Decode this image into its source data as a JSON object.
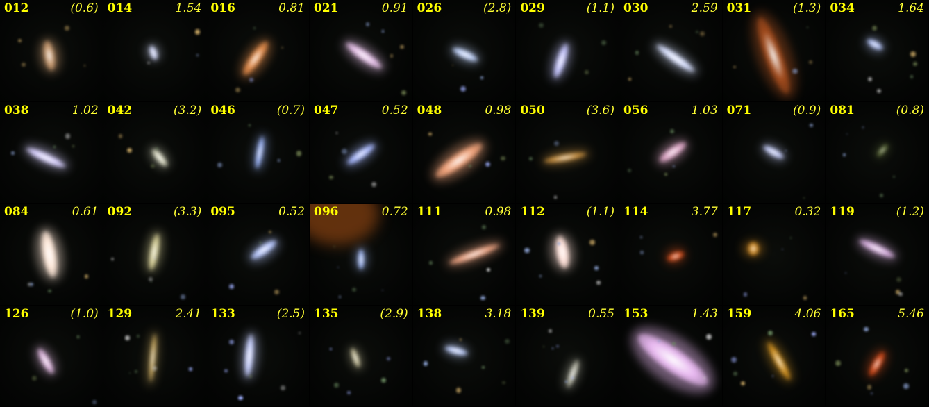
{
  "galaxies": [
    {
      "id": "012",
      "z": "(0.6)",
      "color": "#c89a70",
      "rot": 80,
      "len": 44,
      "wid": 16,
      "x": 48,
      "y": 55
    },
    {
      "id": "014",
      "z": "1.54",
      "color": "#d6dcff",
      "rot": 70,
      "len": 22,
      "wid": 10,
      "x": 49,
      "y": 52
    },
    {
      "id": "016",
      "z": "0.81",
      "color": "#e08a4a",
      "rot": 125,
      "len": 58,
      "wid": 16,
      "x": 48,
      "y": 58
    },
    {
      "id": "021",
      "z": "0.91",
      "color": "#e6c0e8",
      "rot": 35,
      "len": 62,
      "wid": 14,
      "x": 53,
      "y": 55
    },
    {
      "id": "026",
      "z": "(2.8)",
      "color": "#c4d6ff",
      "rot": 25,
      "len": 40,
      "wid": 11,
      "x": 51,
      "y": 54
    },
    {
      "id": "029",
      "z": "(1.1)",
      "color": "#c6c6ff",
      "rot": 108,
      "len": 52,
      "wid": 13,
      "x": 44,
      "y": 60
    },
    {
      "id": "030",
      "z": "2.59",
      "color": "#d8e0ff",
      "rot": 35,
      "len": 66,
      "wid": 12,
      "x": 55,
      "y": 58
    },
    {
      "id": "031",
      "z": "(1.3)",
      "color": "#a04a1c",
      "rot": 70,
      "len": 116,
      "wid": 26,
      "x": 50,
      "y": 55
    },
    {
      "id": "034",
      "z": "1.64",
      "color": "#b8c8ff",
      "rot": 30,
      "len": 26,
      "wid": 10,
      "x": 48,
      "y": 44
    },
    {
      "id": "038",
      "z": "1.02",
      "color": "#d8d0ff",
      "rot": 25,
      "len": 62,
      "wid": 12,
      "x": 45,
      "y": 55
    },
    {
      "id": "042",
      "z": "(3.2)",
      "color": "#e0e0c8",
      "rot": 50,
      "len": 32,
      "wid": 10,
      "x": 55,
      "y": 55
    },
    {
      "id": "046",
      "z": "(0.7)",
      "color": "#9fb8ff",
      "rot": 100,
      "len": 48,
      "wid": 9,
      "x": 52,
      "y": 50
    },
    {
      "id": "047",
      "z": "0.52",
      "color": "#a8b8ff",
      "rot": 145,
      "len": 48,
      "wid": 12,
      "x": 50,
      "y": 52
    },
    {
      "id": "048",
      "z": "0.98",
      "color": "#f0a27a",
      "rot": 145,
      "len": 80,
      "wid": 20,
      "x": 45,
      "y": 58
    },
    {
      "id": "050",
      "z": "(3.6)",
      "color": "#c89040",
      "rot": 170,
      "len": 62,
      "wid": 10,
      "x": 48,
      "y": 55
    },
    {
      "id": "056",
      "z": "1.03",
      "color": "#e0a8c8",
      "rot": 145,
      "len": 46,
      "wid": 14,
      "x": 52,
      "y": 50
    },
    {
      "id": "071",
      "z": "(0.9)",
      "color": "#c8d0ff",
      "rot": 30,
      "len": 34,
      "wid": 10,
      "x": 50,
      "y": 50
    },
    {
      "id": "081",
      "z": "(0.8)",
      "color": "#6a7a40",
      "rot": 130,
      "len": 22,
      "wid": 7,
      "x": 55,
      "y": 48
    },
    {
      "id": "084",
      "z": "0.61",
      "color": "#ffe8d8",
      "rot": 80,
      "len": 68,
      "wid": 20,
      "x": 48,
      "y": 50
    },
    {
      "id": "092",
      "z": "(3.3)",
      "color": "#d8d098",
      "rot": 100,
      "len": 54,
      "wid": 12,
      "x": 50,
      "y": 48
    },
    {
      "id": "095",
      "z": "0.52",
      "color": "#b8c8ff",
      "rot": 145,
      "len": 44,
      "wid": 13,
      "x": 56,
      "y": 46
    },
    {
      "id": "096",
      "z": "0.72",
      "color": "#a8c0ff",
      "rot": 90,
      "len": 30,
      "wid": 9,
      "x": 50,
      "y": 55
    },
    {
      "id": "111",
      "z": "0.98",
      "color": "#e8a080",
      "rot": 160,
      "len": 76,
      "wid": 12,
      "x": 60,
      "y": 50
    },
    {
      "id": "112",
      "z": "(1.1)",
      "color": "#ffe0d8",
      "rot": 80,
      "len": 48,
      "wid": 18,
      "x": 45,
      "y": 48
    },
    {
      "id": "114",
      "z": "3.77",
      "color": "#d04a18",
      "rot": 160,
      "len": 26,
      "wid": 12,
      "x": 55,
      "y": 52
    },
    {
      "id": "117",
      "z": "0.32",
      "color": "#d08820",
      "rot": 90,
      "len": 20,
      "wid": 16,
      "x": 30,
      "y": 45
    },
    {
      "id": "119",
      "z": "(1.2)",
      "color": "#d8b0e0",
      "rot": 25,
      "len": 56,
      "wid": 12,
      "x": 50,
      "y": 45
    },
    {
      "id": "126",
      "z": "(1.0)",
      "color": "#e0b8e0",
      "rot": 60,
      "len": 42,
      "wid": 12,
      "x": 45,
      "y": 55
    },
    {
      "id": "129",
      "z": "2.41",
      "color": "#c8a860",
      "rot": 95,
      "len": 70,
      "wid": 8,
      "x": 48,
      "y": 52
    },
    {
      "id": "133",
      "z": "(2.5)",
      "color": "#c8d0ff",
      "rot": 95,
      "len": 62,
      "wid": 12,
      "x": 42,
      "y": 50
    },
    {
      "id": "135",
      "z": "(2.9)",
      "color": "#d8d0a8",
      "rot": 70,
      "len": 30,
      "wid": 8,
      "x": 45,
      "y": 52
    },
    {
      "id": "138",
      "z": "3.18",
      "color": "#c0d0ff",
      "rot": 15,
      "len": 34,
      "wid": 10,
      "x": 42,
      "y": 45
    },
    {
      "id": "139",
      "z": "0.55",
      "color": "#b8b8a8",
      "rot": 110,
      "len": 42,
      "wid": 10,
      "x": 55,
      "y": 68
    },
    {
      "id": "153",
      "z": "1.43",
      "color": "#e8b8f0",
      "rot": 35,
      "len": 120,
      "wid": 34,
      "x": 52,
      "y": 54
    },
    {
      "id": "159",
      "z": "4.06",
      "color": "#d09020",
      "rot": 60,
      "len": 62,
      "wid": 12,
      "x": 55,
      "y": 55
    },
    {
      "id": "165",
      "z": "5.46",
      "color": "#d04818",
      "rot": 120,
      "len": 40,
      "wid": 12,
      "x": 50,
      "y": 58
    }
  ]
}
